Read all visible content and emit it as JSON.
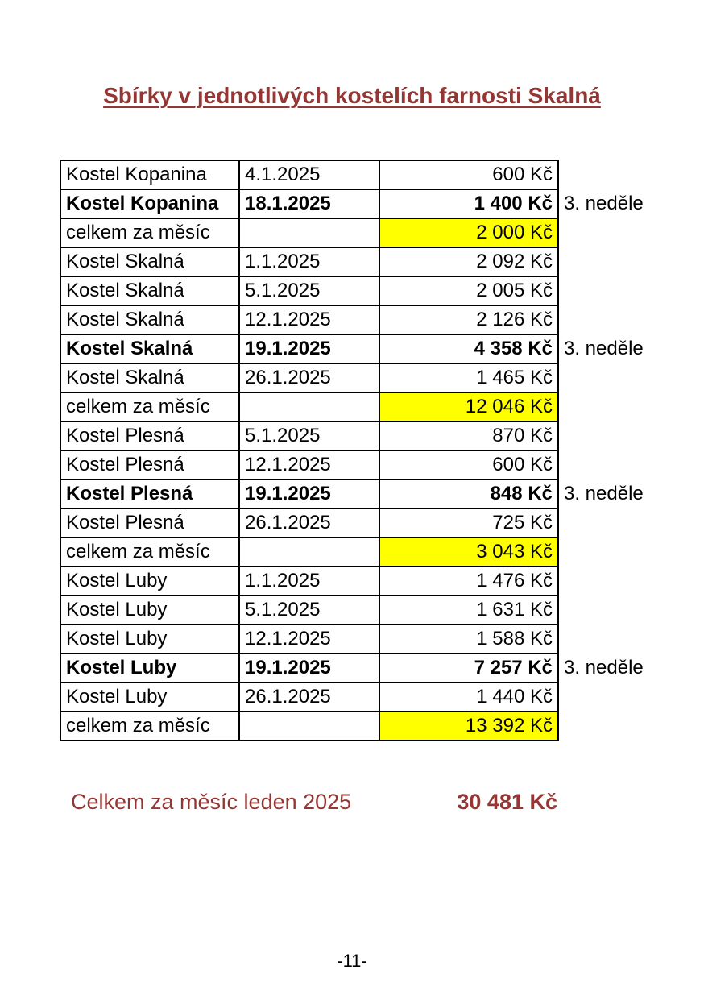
{
  "page": {
    "title": "Sbírky v jednotlivých kostelích farnosti Skalná",
    "page_number": "-11-"
  },
  "colors": {
    "accent_red": "#943634",
    "highlight_yellow": "#ffff00",
    "text_black": "#000000",
    "background": "#ffffff"
  },
  "table": {
    "columns": [
      "church",
      "date",
      "amount",
      "note"
    ],
    "rows": [
      {
        "church": "Kostel Kopanina",
        "date": "4.1.2025",
        "amount": "600 Kč",
        "bold": false,
        "highlight": false,
        "note": ""
      },
      {
        "church": "Kostel Kopanina",
        "date": "18.1.2025",
        "amount": "1 400 Kč",
        "bold": true,
        "highlight": false,
        "note": "3. neděle"
      },
      {
        "church": "celkem za měsíc",
        "date": "",
        "amount": "2 000 Kč",
        "bold": false,
        "highlight": true,
        "note": ""
      },
      {
        "church": "Kostel Skalná",
        "date": "1.1.2025",
        "amount": "2 092 Kč",
        "bold": false,
        "highlight": false,
        "note": ""
      },
      {
        "church": "Kostel Skalná",
        "date": "5.1.2025",
        "amount": "2 005 Kč",
        "bold": false,
        "highlight": false,
        "note": ""
      },
      {
        "church": "Kostel Skalná",
        "date": "12.1.2025",
        "amount": "2 126 Kč",
        "bold": false,
        "highlight": false,
        "note": ""
      },
      {
        "church": "Kostel Skalná",
        "date": "19.1.2025",
        "amount": "4 358 Kč",
        "bold": true,
        "highlight": false,
        "note": "3. neděle"
      },
      {
        "church": "Kostel Skalná",
        "date": "26.1.2025",
        "amount": "1 465 Kč",
        "bold": false,
        "highlight": false,
        "note": ""
      },
      {
        "church": "celkem za měsíc",
        "date": "",
        "amount": "12 046 Kč",
        "bold": false,
        "highlight": true,
        "note": ""
      },
      {
        "church": "Kostel Plesná",
        "date": "5.1.2025",
        "amount": "870 Kč",
        "bold": false,
        "highlight": false,
        "note": ""
      },
      {
        "church": "Kostel Plesná",
        "date": "12.1.2025",
        "amount": "600 Kč",
        "bold": false,
        "highlight": false,
        "note": ""
      },
      {
        "church": "Kostel Plesná",
        "date": "19.1.2025",
        "amount": "848 Kč",
        "bold": true,
        "highlight": false,
        "note": "3. neděle"
      },
      {
        "church": "Kostel Plesná",
        "date": "26.1.2025",
        "amount": "725 Kč",
        "bold": false,
        "highlight": false,
        "note": ""
      },
      {
        "church": "celkem za měsíc",
        "date": "",
        "amount": "3 043 Kč",
        "bold": false,
        "highlight": true,
        "note": ""
      },
      {
        "church": "Kostel Luby",
        "date": "1.1.2025",
        "amount": "1 476 Kč",
        "bold": false,
        "highlight": false,
        "note": ""
      },
      {
        "church": "Kostel Luby",
        "date": "5.1.2025",
        "amount": "1 631 Kč",
        "bold": false,
        "highlight": false,
        "note": ""
      },
      {
        "church": "Kostel Luby",
        "date": "12.1.2025",
        "amount": "1 588 Kč",
        "bold": false,
        "highlight": false,
        "note": ""
      },
      {
        "church": "Kostel Luby",
        "date": "19.1.2025",
        "amount": "7 257 Kč",
        "bold": true,
        "highlight": false,
        "note": "3. neděle"
      },
      {
        "church": "Kostel Luby",
        "date": "26.1.2025",
        "amount": "1 440 Kč",
        "bold": false,
        "highlight": false,
        "note": ""
      },
      {
        "church": "celkem za měsíc",
        "date": "",
        "amount": "13 392 Kč",
        "bold": false,
        "highlight": true,
        "note": ""
      }
    ]
  },
  "summary": {
    "label": "Celkem za měsíc leden 2025",
    "amount": "30 481 Kč"
  }
}
